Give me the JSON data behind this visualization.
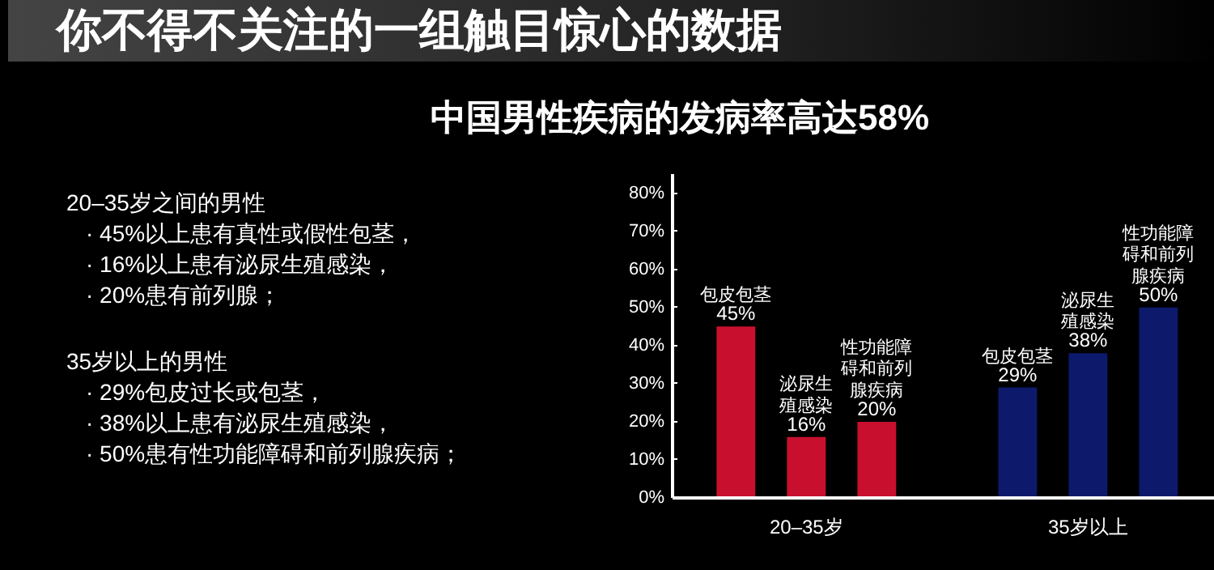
{
  "chart_data": {
    "type": "bar",
    "title": "你不得不关注的一组触目惊心的数据",
    "subtitle": "中国男性疾病的发病率高达58%",
    "categories": [
      "20–35岁",
      "35岁以上"
    ],
    "series": [
      {
        "name": "包皮包茎",
        "colors": [
          "#c8102e",
          "#0d1a6b"
        ],
        "values": [
          45,
          29
        ],
        "value_labels": [
          "45%",
          "29%"
        ]
      },
      {
        "name": "泌尿生殖感染",
        "colors": [
          "#c8102e",
          "#0d1a6b"
        ],
        "values": [
          16,
          38
        ],
        "value_labels": [
          "16%",
          "38%"
        ]
      },
      {
        "name": "性功能障碍和前列腺疾病",
        "colors": [
          "#c8102e",
          "#0d1a6b"
        ],
        "values": [
          20,
          50
        ],
        "value_labels": [
          "20%",
          "50%"
        ]
      }
    ],
    "ylim": [
      0,
      85
    ],
    "yticks": [
      {
        "value": 0,
        "label": "0%"
      },
      {
        "value": 10,
        "label": "10%"
      },
      {
        "value": 20,
        "label": "20%"
      },
      {
        "value": 30,
        "label": "30%"
      },
      {
        "value": 40,
        "label": "40%"
      },
      {
        "value": 50,
        "label": "50%"
      },
      {
        "value": 60,
        "label": "60%"
      },
      {
        "value": 70,
        "label": "70%"
      },
      {
        "value": 80,
        "label": "80%"
      }
    ],
    "annotations": [
      "20–35岁之间的男性",
      "· 45%以上患有真性或假性包茎，",
      "· 16%以上患有泌尿生殖感染，",
      "· 20%患有前列腺；",
      "35岁以上的男性",
      "· 29%包皮过长或包茎，",
      "· 38%以上患有泌尿生殖感染，",
      "· 50%患有性功能障碍和前列腺疾病；"
    ]
  }
}
